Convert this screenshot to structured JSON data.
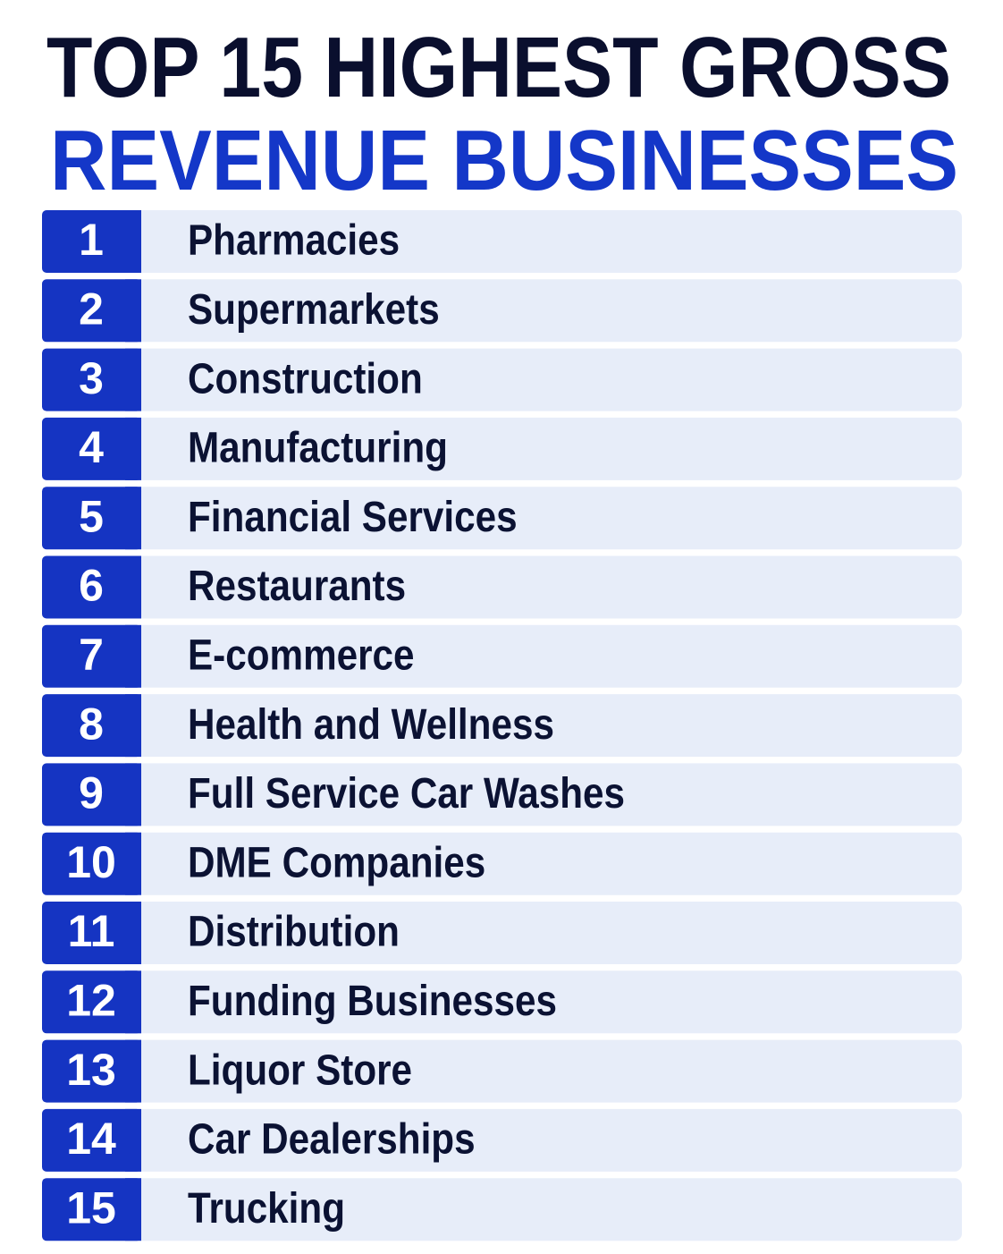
{
  "header": {
    "title_line1": "TOP 15 HIGHEST GROSS",
    "title_line2": "REVENUE BUSINESSES"
  },
  "list": {
    "items": [
      {
        "rank": 1,
        "label": "Pharmacies"
      },
      {
        "rank": 2,
        "label": "Supermarkets"
      },
      {
        "rank": 3,
        "label": "Construction"
      },
      {
        "rank": 4,
        "label": "Manufacturing"
      },
      {
        "rank": 5,
        "label": "Financial Services"
      },
      {
        "rank": 6,
        "label": "Restaurants"
      },
      {
        "rank": 7,
        "label": "E-commerce"
      },
      {
        "rank": 8,
        "label": "Health and Wellness"
      },
      {
        "rank": 9,
        "label": "Full Service Car Washes"
      },
      {
        "rank": 10,
        "label": "DME Companies"
      },
      {
        "rank": 11,
        "label": "Distribution"
      },
      {
        "rank": 12,
        "label": "Funding Businesses"
      },
      {
        "rank": 13,
        "label": "Liquor Store"
      },
      {
        "rank": 14,
        "label": "Car Dealerships"
      },
      {
        "rank": 15,
        "label": "Trucking"
      }
    ]
  }
}
